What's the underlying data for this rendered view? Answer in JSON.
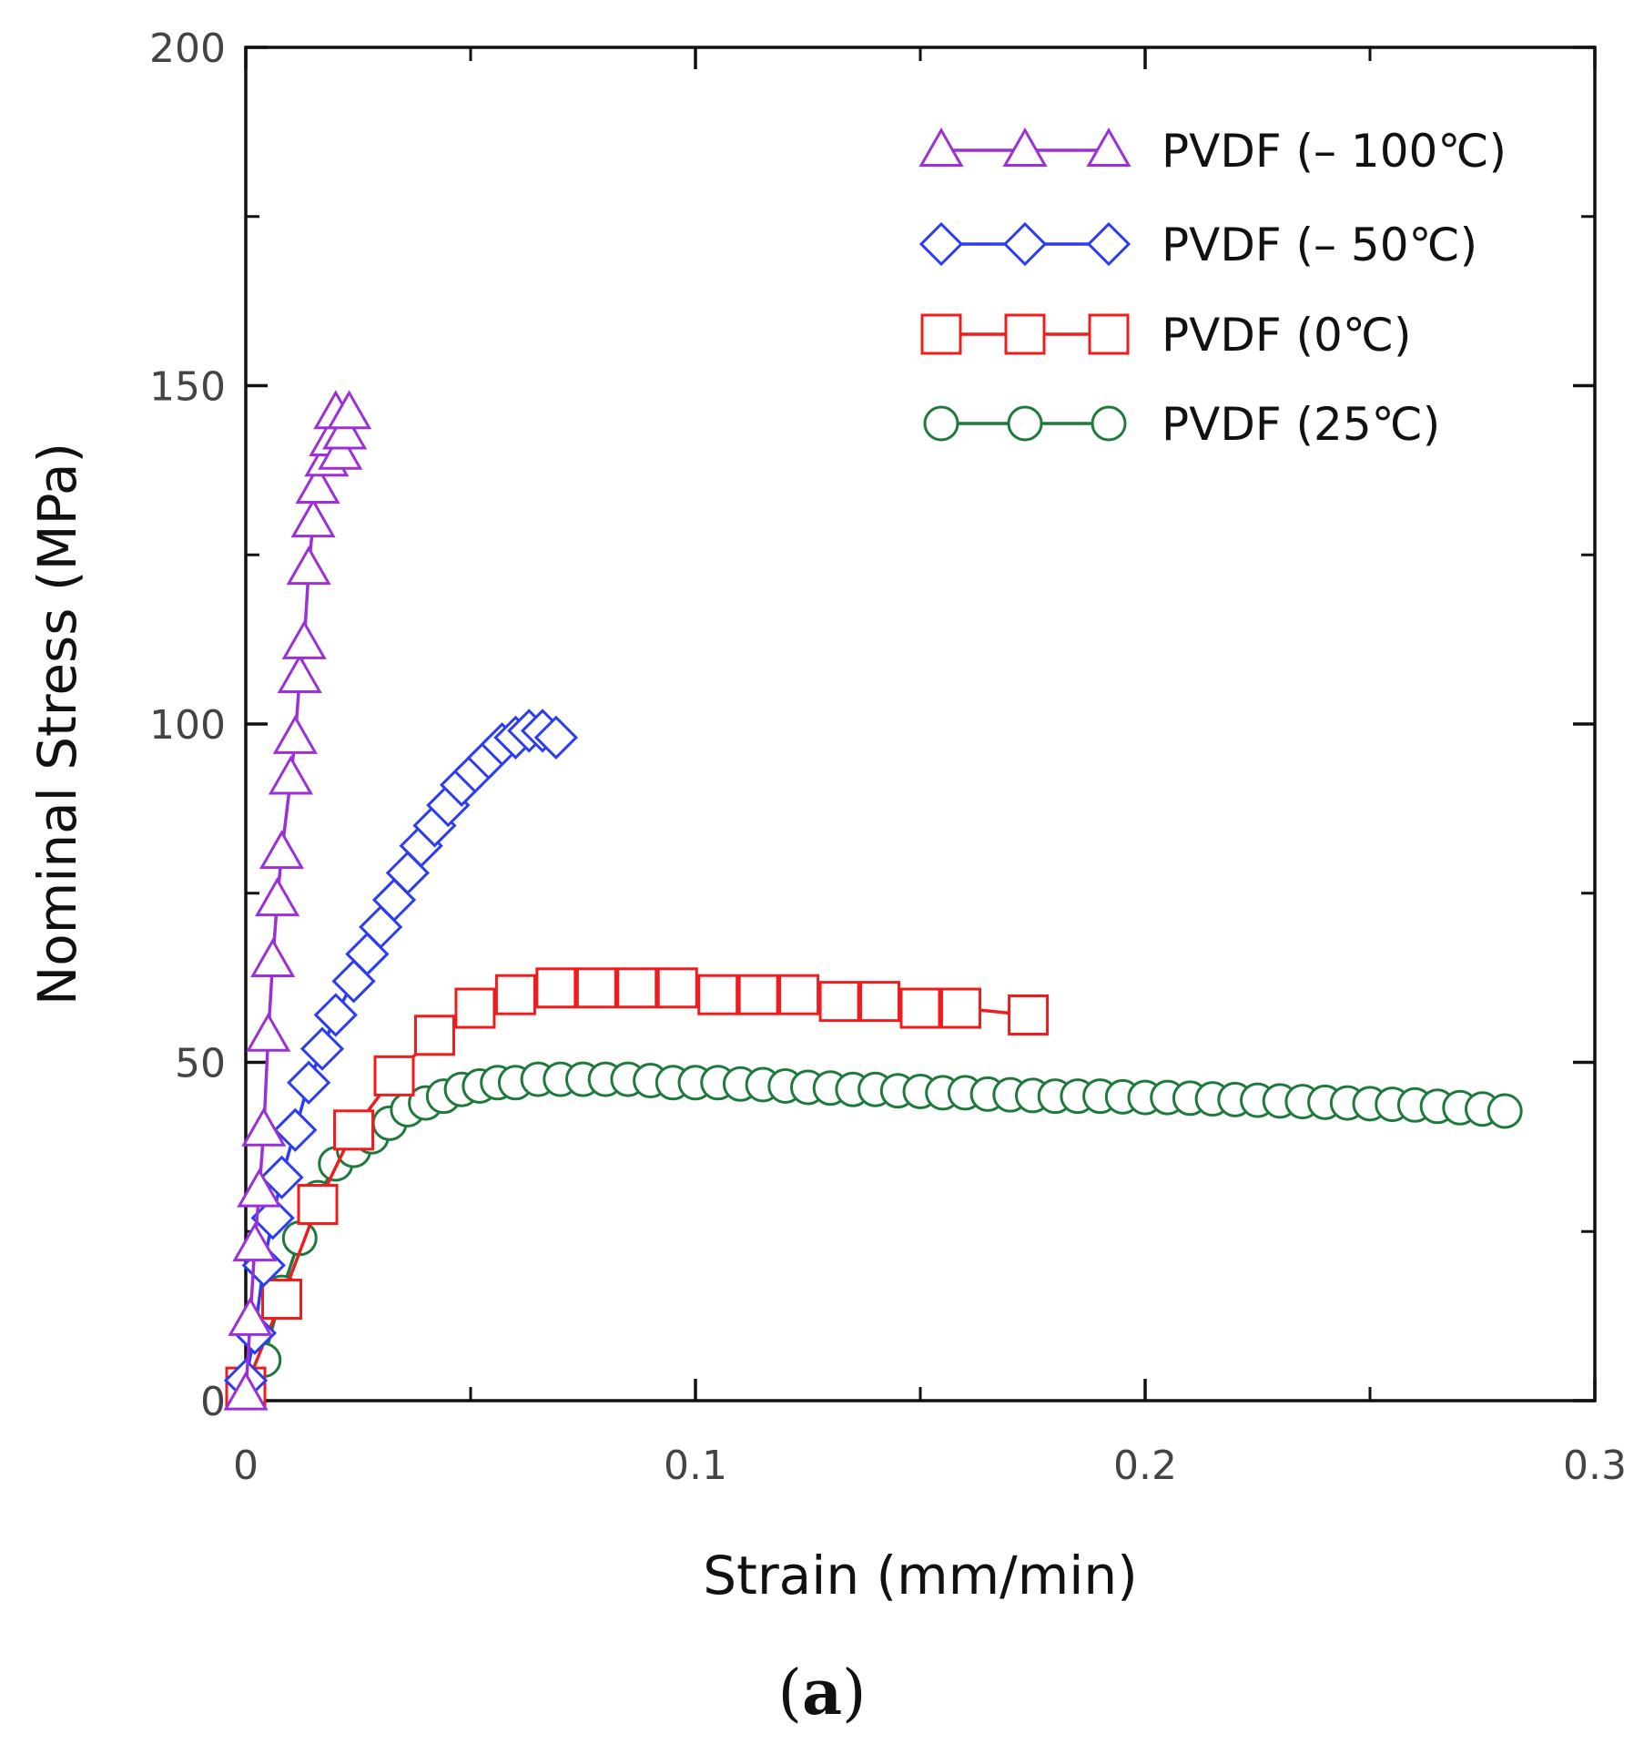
{
  "chart_data": {
    "type": "line",
    "title": "",
    "xlabel": "Strain (mm/min)",
    "ylabel": "Nominal Stress (MPa)",
    "xlim": [
      0,
      0.3
    ],
    "ylim": [
      0,
      200
    ],
    "x_ticks": [
      "0",
      "0.1",
      "0.2",
      "0.3"
    ],
    "y_ticks": [
      "0",
      "50",
      "100",
      "150",
      "200"
    ],
    "x_minor_ticks": [
      0.05,
      0.15,
      0.25
    ],
    "y_minor_ticks": [
      25,
      75,
      125,
      175
    ],
    "legend_position": "top-right",
    "panel_label": {
      "open": "(",
      "letter": "a",
      "close": ")"
    },
    "series": [
      {
        "name": "PVDF (– 100℃)",
        "color": "#9b30d9",
        "marker": "triangle",
        "x": [
          0.0,
          0.001,
          0.002,
          0.003,
          0.004,
          0.005,
          0.006,
          0.007,
          0.008,
          0.01,
          0.011,
          0.012,
          0.013,
          0.014,
          0.015,
          0.016,
          0.018,
          0.019,
          0.02,
          0.021,
          0.022,
          0.023
        ],
        "y": [
          1,
          12,
          23,
          31,
          40,
          54,
          65,
          74,
          81,
          92,
          98,
          107,
          112,
          123,
          130,
          135,
          139,
          142,
          146,
          140,
          143,
          146
        ]
      },
      {
        "name": "PVDF (– 50℃)",
        "color": "#2b3cf5",
        "marker": "diamond",
        "x": [
          0.0,
          0.002,
          0.004,
          0.006,
          0.008,
          0.011,
          0.014,
          0.017,
          0.02,
          0.024,
          0.027,
          0.03,
          0.033,
          0.036,
          0.039,
          0.042,
          0.045,
          0.048,
          0.051,
          0.054,
          0.057,
          0.06,
          0.063,
          0.066,
          0.069
        ],
        "y": [
          3,
          10,
          20,
          27,
          33,
          40,
          47,
          52,
          57,
          62,
          66,
          70,
          74,
          78,
          82,
          85,
          88,
          91,
          93,
          95,
          97,
          98,
          99,
          99,
          98
        ]
      },
      {
        "name": "PVDF (0℃)",
        "color": "#ee1c1c",
        "marker": "square",
        "x": [
          0.0,
          0.008,
          0.016,
          0.024,
          0.033,
          0.042,
          0.051,
          0.06,
          0.069,
          0.078,
          0.087,
          0.096,
          0.105,
          0.114,
          0.123,
          0.132,
          0.141,
          0.15,
          0.159,
          0.174
        ],
        "y": [
          2,
          15,
          29,
          40,
          48,
          54,
          58,
          60,
          61,
          61,
          61,
          61,
          60,
          60,
          60,
          59,
          59,
          58,
          58,
          57
        ]
      },
      {
        "name": "PVDF (25℃)",
        "color": "#1e7a3c",
        "marker": "circle",
        "x": [
          0.0,
          0.004,
          0.008,
          0.012,
          0.016,
          0.02,
          0.024,
          0.028,
          0.032,
          0.036,
          0.04,
          0.044,
          0.048,
          0.052,
          0.056,
          0.06,
          0.065,
          0.07,
          0.075,
          0.08,
          0.085,
          0.09,
          0.095,
          0.1,
          0.105,
          0.11,
          0.115,
          0.12,
          0.125,
          0.13,
          0.135,
          0.14,
          0.145,
          0.15,
          0.155,
          0.16,
          0.165,
          0.17,
          0.175,
          0.18,
          0.185,
          0.19,
          0.195,
          0.2,
          0.205,
          0.21,
          0.215,
          0.22,
          0.225,
          0.23,
          0.235,
          0.24,
          0.245,
          0.25,
          0.255,
          0.26,
          0.265,
          0.27,
          0.275,
          0.28
        ],
        "y": [
          2,
          6,
          16,
          24,
          30,
          35,
          37,
          39,
          41,
          43,
          44,
          45,
          46,
          46.5,
          47,
          47,
          47.5,
          47.5,
          47.5,
          47.5,
          47.5,
          47.3,
          47,
          47,
          47,
          46.8,
          46.7,
          46.5,
          46.3,
          46.2,
          46,
          46,
          45.8,
          45.7,
          45.5,
          45.5,
          45.3,
          45.2,
          45.1,
          45,
          45,
          45,
          44.9,
          44.8,
          44.8,
          44.7,
          44.6,
          44.5,
          44.4,
          44.3,
          44.2,
          44.1,
          44,
          43.9,
          43.8,
          43.7,
          43.5,
          43.3,
          43.1,
          42.8
        ]
      }
    ]
  }
}
